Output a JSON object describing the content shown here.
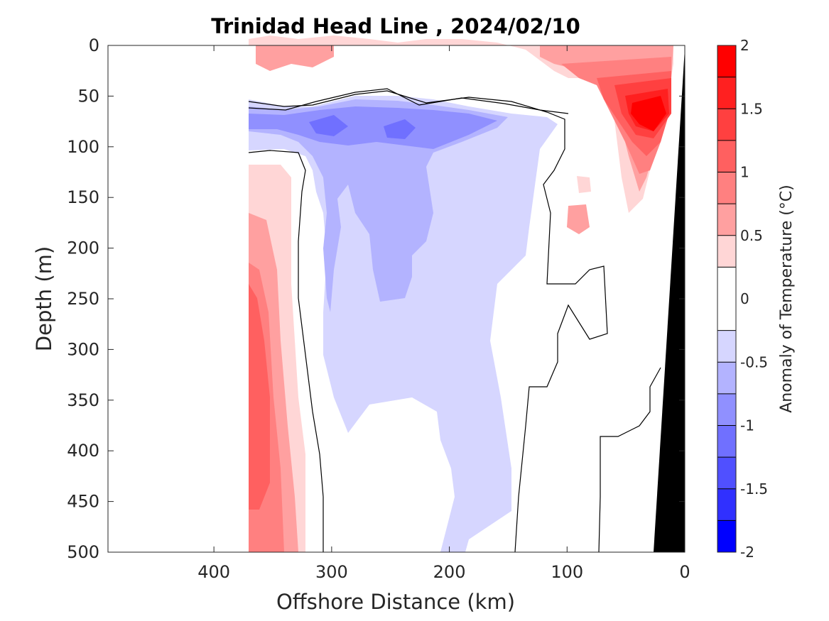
{
  "chart_data": {
    "type": "heatmap",
    "title": "Trinidad Head Line , 2024/02/10",
    "xlabel": "Offshore Distance (km)",
    "ylabel": "Depth (m)",
    "xlim": [
      490,
      0
    ],
    "ylim": [
      0,
      500
    ],
    "x_reversed": true,
    "y_reversed": true,
    "x_ticks": [
      400,
      300,
      200,
      100,
      0
    ],
    "y_ticks": [
      0,
      50,
      100,
      150,
      200,
      250,
      300,
      350,
      400,
      450,
      500
    ],
    "colorbar": {
      "label": "Anomaly of Temperature (°C)",
      "range": [
        -2,
        2
      ],
      "ticks": [
        2,
        1.5,
        1,
        0.5,
        0,
        -0.5,
        -1,
        -1.5,
        -2
      ],
      "tick_labels": [
        "2",
        "1.5",
        "1",
        "0.5",
        "0",
        "-0.5",
        "-1",
        "-1.5",
        "-2"
      ],
      "levels": [
        -2,
        -1.75,
        -1.5,
        -1.25,
        -1,
        -0.75,
        -0.5,
        -0.25,
        0.25,
        0.5,
        0.75,
        1,
        1.25,
        1.5,
        1.75,
        2
      ],
      "bands": [
        {
          "from": 1.75,
          "to": 2,
          "color": "#ff0000"
        },
        {
          "from": 1.5,
          "to": 1.75,
          "color": "#ff2020"
        },
        {
          "from": 1.25,
          "to": 1.5,
          "color": "#ff4040"
        },
        {
          "from": 1,
          "to": 1.25,
          "color": "#ff6060"
        },
        {
          "from": 0.75,
          "to": 1,
          "color": "#ff8080"
        },
        {
          "from": 0.5,
          "to": 0.75,
          "color": "#ffa0a0"
        },
        {
          "from": 0.25,
          "to": 0.5,
          "color": "#ffd6d6"
        },
        {
          "from": -0.25,
          "to": 0.25,
          "color": "#ffffff"
        },
        {
          "from": -0.5,
          "to": -0.25,
          "color": "#d6d6ff"
        },
        {
          "from": -0.75,
          "to": -0.5,
          "color": "#b3b3ff"
        },
        {
          "from": -1,
          "to": -0.75,
          "color": "#9090ff"
        },
        {
          "from": -1.25,
          "to": -1,
          "color": "#7070ff"
        },
        {
          "from": -1.5,
          "to": -1.25,
          "color": "#5050ff"
        },
        {
          "from": -1.75,
          "to": -1.5,
          "color": "#3030ff"
        },
        {
          "from": -2,
          "to": -1.75,
          "color": "#0000ff"
        }
      ]
    },
    "data_coverage_x": [
      0,
      370
    ],
    "regions": [
      {
        "name": "surface-warm-layer",
        "anomaly": 0.4,
        "x": [
          370,
          0
        ],
        "depth": [
          0,
          55
        ]
      },
      {
        "name": "nearshore-warm-core",
        "anomaly": 1.8,
        "x": [
          45,
          25
        ],
        "depth": [
          60,
          95
        ]
      },
      {
        "name": "subsurface-cold-core-1",
        "anomaly": -1.1,
        "x": [
          300,
          265
        ],
        "depth": [
          70,
          90
        ]
      },
      {
        "name": "subsurface-cold-core-2",
        "anomaly": -1.1,
        "x": [
          255,
          235
        ],
        "depth": [
          75,
          90
        ]
      },
      {
        "name": "offshore-warm-band",
        "anomaly": 1.0,
        "x": [
          370,
          345
        ],
        "depth": [
          280,
          450
        ]
      },
      {
        "name": "mid-depth-cool-region",
        "anomaly": -0.4,
        "x": [
          320,
          100
        ],
        "depth": [
          100,
          500
        ]
      }
    ],
    "zero_contours": true,
    "bathymetry": {
      "color": "#000000",
      "x": [
        0,
        30
      ],
      "depth": [
        0,
        500
      ]
    },
    "grid": false
  }
}
